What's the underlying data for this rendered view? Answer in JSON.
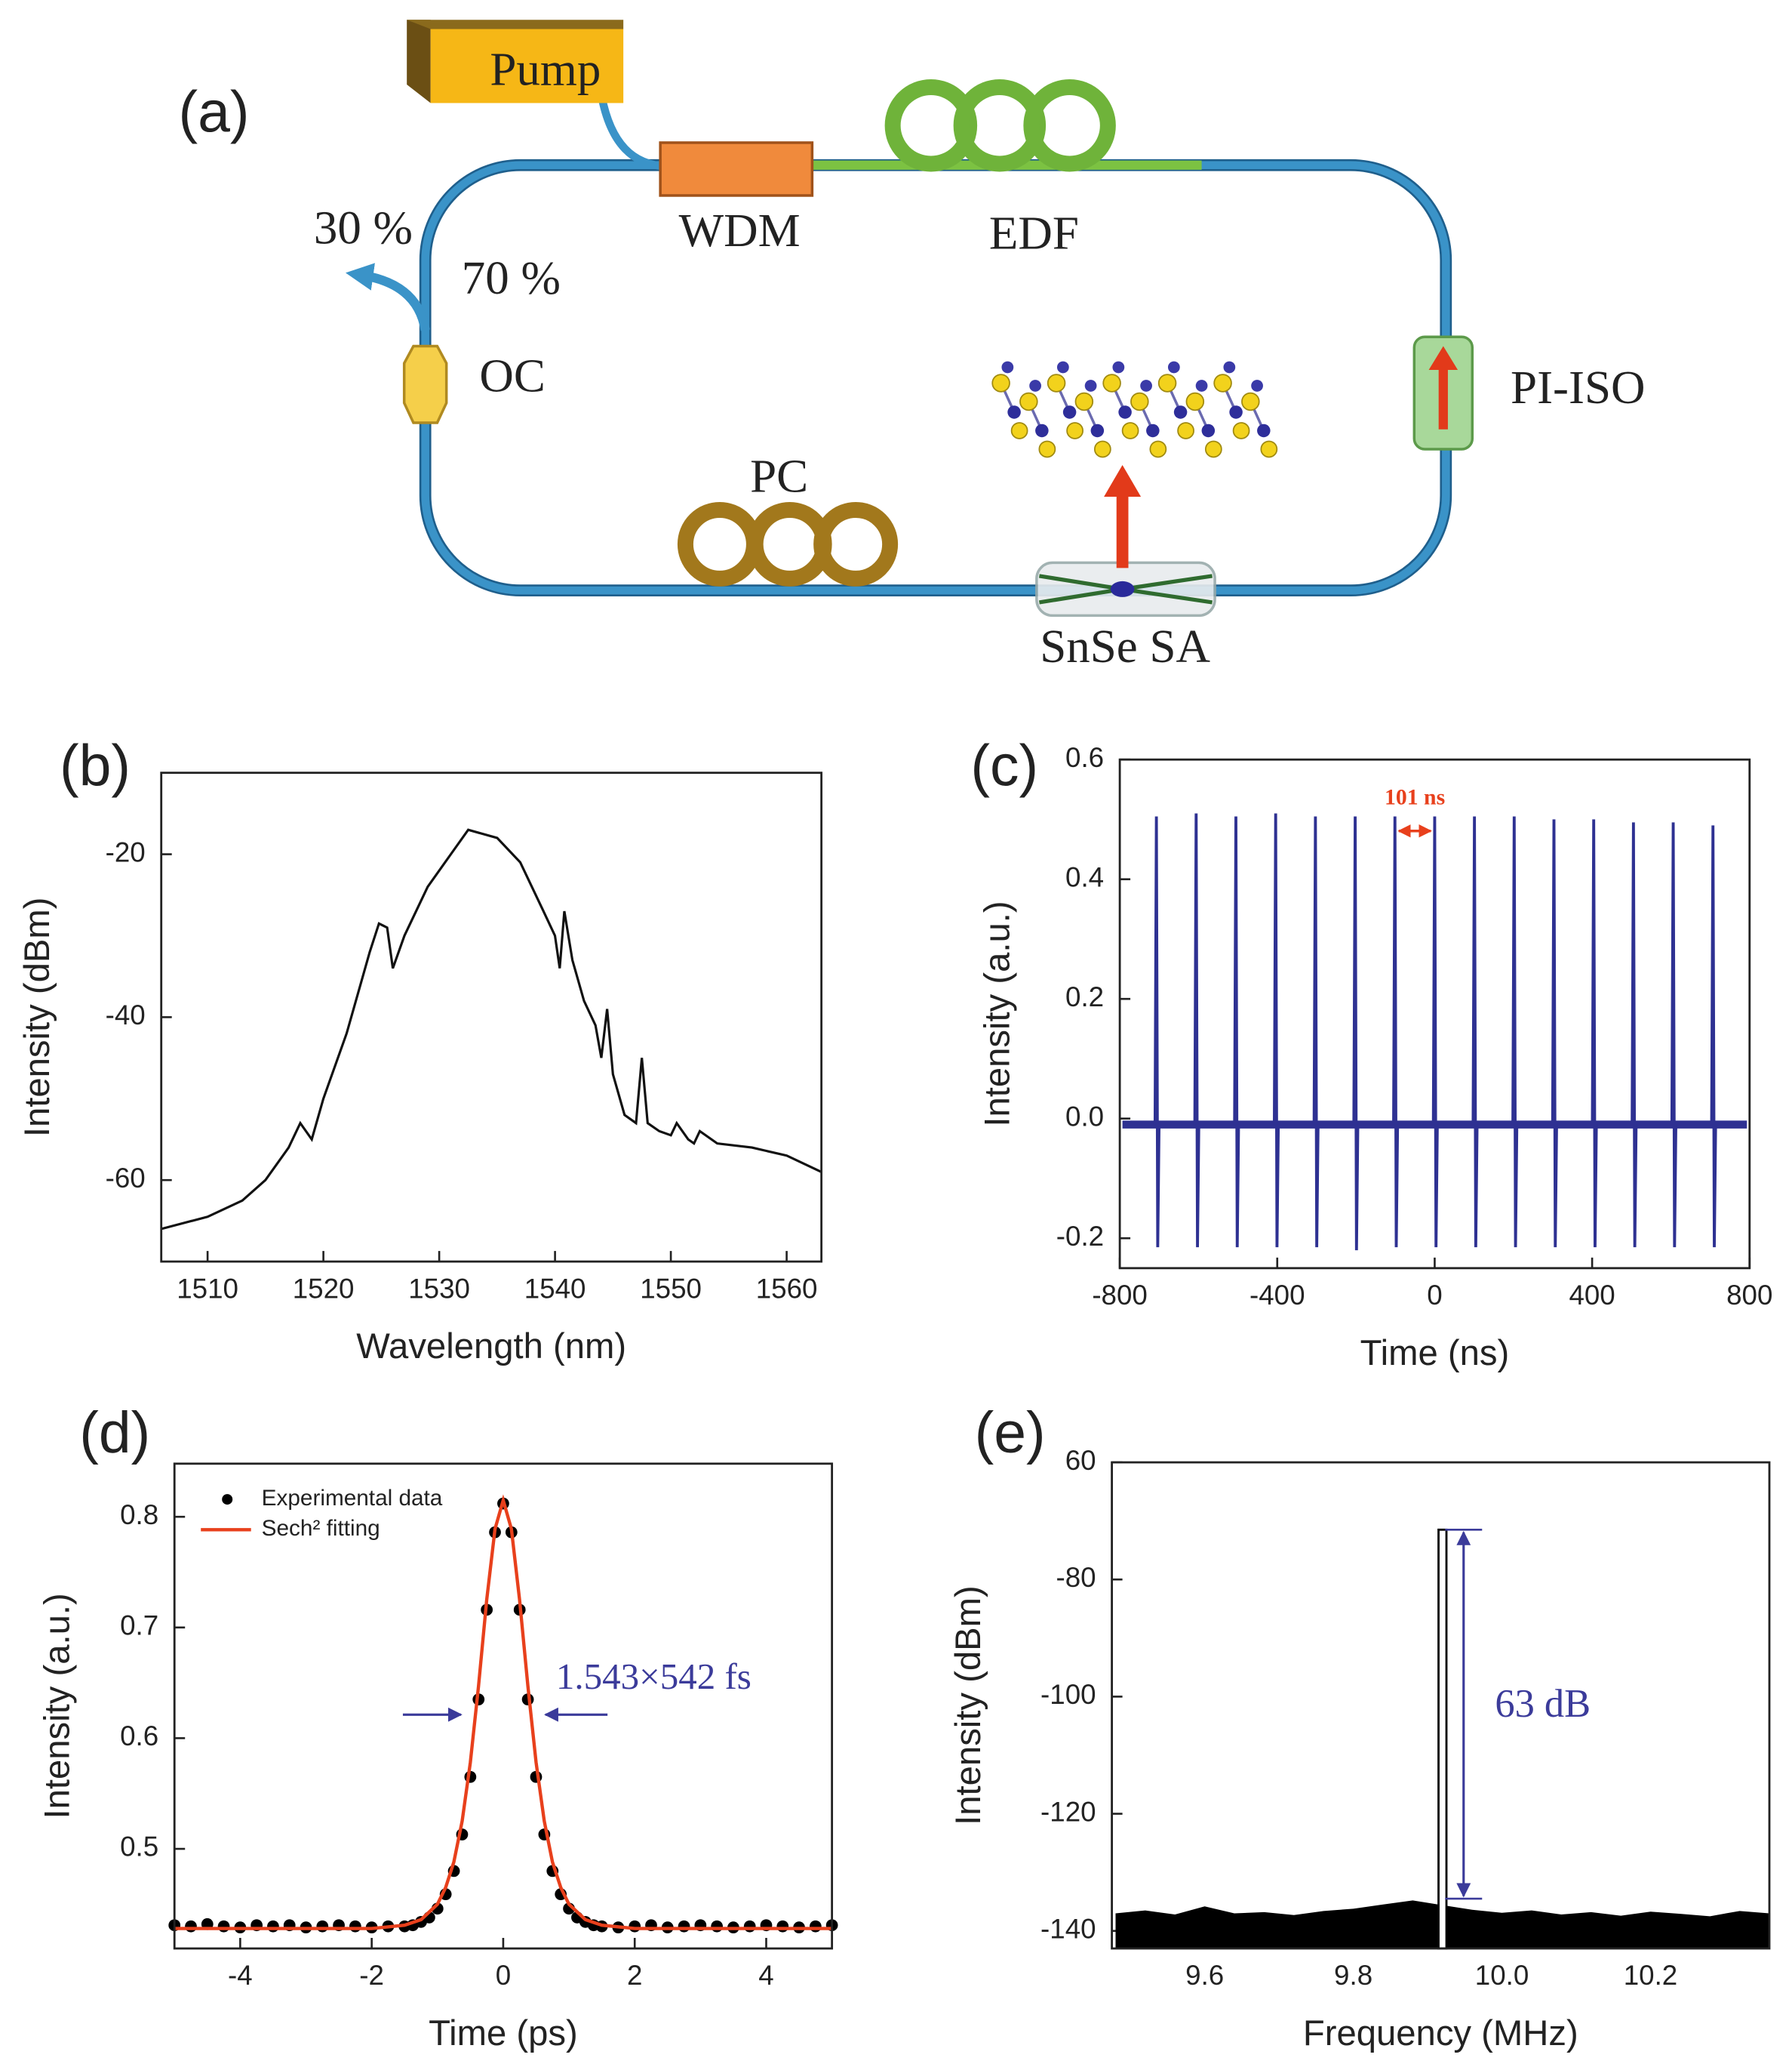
{
  "diagram": {
    "label": "(a)",
    "components": {
      "pump": "Pump",
      "wdm": "WDM",
      "edf": "EDF",
      "output": "30 %",
      "loop": "70 %",
      "oc": "OC",
      "pc": "PC",
      "iso": "PI-ISO",
      "sa": "SnSe SA"
    }
  },
  "chart_data": [
    {
      "type": "line",
      "panel_label": "(b)",
      "xlabel": "Wavelength (nm)",
      "ylabel": "Intensity (dBm)",
      "color": "#111111",
      "xlim": [
        1506,
        1563
      ],
      "xticks": [
        1510,
        1520,
        1530,
        1540,
        1550,
        1560
      ],
      "ylim": [
        -70,
        -10
      ],
      "yticks": [
        -20,
        -40,
        -60
      ],
      "x": [
        1506,
        1510,
        1513,
        1515,
        1517,
        1518,
        1519,
        1520,
        1522,
        1524,
        1524.8,
        1525.5,
        1526,
        1527,
        1529,
        1531,
        1532.5,
        1535,
        1537,
        1539,
        1540,
        1540.4,
        1540.8,
        1541.5,
        1542.5,
        1543.5,
        1544,
        1544.5,
        1545,
        1546,
        1547,
        1547.5,
        1548,
        1549,
        1550,
        1550.5,
        1551.5,
        1552,
        1552.5,
        1554,
        1557,
        1560,
        1563
      ],
      "values": [
        -66,
        -64.5,
        -62.5,
        -60,
        -56,
        -53,
        -55,
        -50,
        -42,
        -32,
        -28.5,
        -29,
        -34,
        -30,
        -24,
        -20,
        -17,
        -18,
        -21,
        -27,
        -30,
        -34,
        -27,
        -33,
        -38,
        -41,
        -45,
        -39,
        -47,
        -52,
        -53,
        -45,
        -53,
        -54,
        -54.5,
        -53,
        -55,
        -55.5,
        -54,
        -55.5,
        -56,
        -57,
        -59
      ]
    },
    {
      "type": "pulse_train",
      "panel_label": "(c)",
      "xlabel": "Time (ns)",
      "ylabel": "Intensity (a.u.)",
      "color": "#2e3192",
      "xlim": [
        -800,
        800
      ],
      "xticks": [
        -800,
        -400,
        0,
        400,
        800
      ],
      "ylim": [
        -0.25,
        0.6
      ],
      "yticks": [
        -0.2,
        {
          "value": 0,
          "label": "0.0"
        },
        0.2,
        0.4,
        0.6
      ],
      "x": [
        -707,
        -606,
        -505,
        -404,
        -303,
        -202,
        -101,
        0,
        101,
        202,
        303,
        404,
        505,
        606,
        707
      ],
      "values": [
        0.505,
        0.51,
        0.505,
        0.51,
        0.505,
        0.505,
        0.505,
        0.505,
        0.505,
        0.505,
        0.5,
        0.5,
        0.495,
        0.495,
        0.49
      ],
      "troughs": [
        -0.215,
        -0.215,
        -0.215,
        -0.215,
        -0.215,
        -0.22,
        -0.215,
        -0.215,
        -0.215,
        -0.215,
        -0.215,
        -0.215,
        -0.215,
        -0.215,
        -0.215
      ],
      "baseline": -0.01,
      "annotation": "101 ns",
      "annotation_color": "#e8401c"
    },
    {
      "type": "scatter_fit",
      "panel_label": "(d)",
      "xlabel": "Time (ps)",
      "ylabel": "Intensity (a.u.)",
      "xlim": [
        -5,
        5
      ],
      "xticks": [
        -4,
        -2,
        0,
        2,
        4
      ],
      "ylim": [
        0.41,
        0.848
      ],
      "yticks": [
        0.5,
        0.6,
        0.7,
        0.8
      ],
      "series": [
        {
          "name": "Experimental data",
          "color": "#000000",
          "style": "dots",
          "x": [
            -5,
            -4.75,
            -4.5,
            -4.25,
            -4,
            -3.75,
            -3.5,
            -3.25,
            -3,
            -2.75,
            -2.5,
            -2.25,
            -2,
            -1.75,
            -1.5,
            -1.375,
            -1.25,
            -1.125,
            -1,
            -0.875,
            -0.75,
            -0.625,
            -0.5,
            -0.375,
            -0.25,
            -0.125,
            0,
            0.125,
            0.25,
            0.375,
            0.5,
            0.625,
            0.75,
            0.875,
            1,
            1.125,
            1.25,
            1.375,
            1.5,
            1.75,
            2,
            2.25,
            2.5,
            2.75,
            3,
            3.25,
            3.5,
            3.75,
            4,
            4.25,
            4.5,
            4.75,
            5
          ],
          "values": [
            0.431,
            0.43,
            0.432,
            0.43,
            0.429,
            0.431,
            0.43,
            0.431,
            0.429,
            0.43,
            0.431,
            0.43,
            0.429,
            0.43,
            0.43,
            0.431,
            0.434,
            0.438,
            0.446,
            0.459,
            0.48,
            0.513,
            0.565,
            0.635,
            0.716,
            0.786,
            0.812,
            0.786,
            0.716,
            0.635,
            0.565,
            0.513,
            0.48,
            0.459,
            0.446,
            0.438,
            0.434,
            0.431,
            0.43,
            0.429,
            0.43,
            0.431,
            0.429,
            0.43,
            0.431,
            0.43,
            0.429,
            0.43,
            0.431,
            0.43,
            0.429,
            0.43,
            0.431
          ]
        },
        {
          "name": "Sech² fitting",
          "color": "#e8401c",
          "style": "line",
          "x": [
            -5,
            -4,
            -3,
            -2,
            -1.5,
            -1.25,
            -1,
            -0.875,
            -0.75,
            -0.625,
            -0.5,
            -0.375,
            -0.25,
            -0.125,
            0,
            0.125,
            0.25,
            0.375,
            0.5,
            0.625,
            0.75,
            0.875,
            1,
            1.25,
            1.5,
            2,
            3,
            4,
            5
          ],
          "values": [
            0.428,
            0.428,
            0.428,
            0.428,
            0.431,
            0.436,
            0.45,
            0.465,
            0.488,
            0.525,
            0.578,
            0.647,
            0.725,
            0.789,
            0.815,
            0.789,
            0.725,
            0.647,
            0.578,
            0.525,
            0.488,
            0.465,
            0.45,
            0.436,
            0.431,
            0.428,
            0.428,
            0.428,
            0.428
          ]
        }
      ],
      "annotation": "1.543×542 fs",
      "annotation_color": "#3b3b9a"
    },
    {
      "type": "spike_floor",
      "panel_label": "(e)",
      "xlabel": "Frequency (MHz)",
      "ylabel": "Intensity (dBm)",
      "color": "#000000",
      "xlim": [
        9.475,
        10.36
      ],
      "xticks": [
        9.6,
        9.8,
        {
          "value": 10,
          "label": "10.0"
        },
        10.2
      ],
      "ylim": [
        -143,
        -60
      ],
      "yticks": [
        {
          "value": -60,
          "label": "60"
        },
        -80,
        -100,
        -120,
        -140
      ],
      "x": [
        9.48,
        9.52,
        9.56,
        9.6,
        9.64,
        9.68,
        9.72,
        9.76,
        9.8,
        9.84,
        9.88,
        9.92,
        9.96,
        10,
        10.04,
        10.08,
        10.12,
        10.16,
        10.2,
        10.24,
        10.28,
        10.32,
        10.36
      ],
      "values": [
        -137,
        -136.5,
        -137.2,
        -135.8,
        -137,
        -136.8,
        -137.3,
        -136.6,
        -136.2,
        -135.5,
        -134.8,
        -135.6,
        -136.4,
        -136.9,
        -136.5,
        -137.2,
        -136.8,
        -137.4,
        -136.7,
        -137.1,
        -137.5,
        -136.6,
        -137
      ],
      "peak": {
        "x": 9.92,
        "value": -71.5
      },
      "arrow_range": [
        -71.5,
        -134.5
      ],
      "annotation": "63 dB",
      "annotation_color": "#3b3b9a"
    }
  ]
}
